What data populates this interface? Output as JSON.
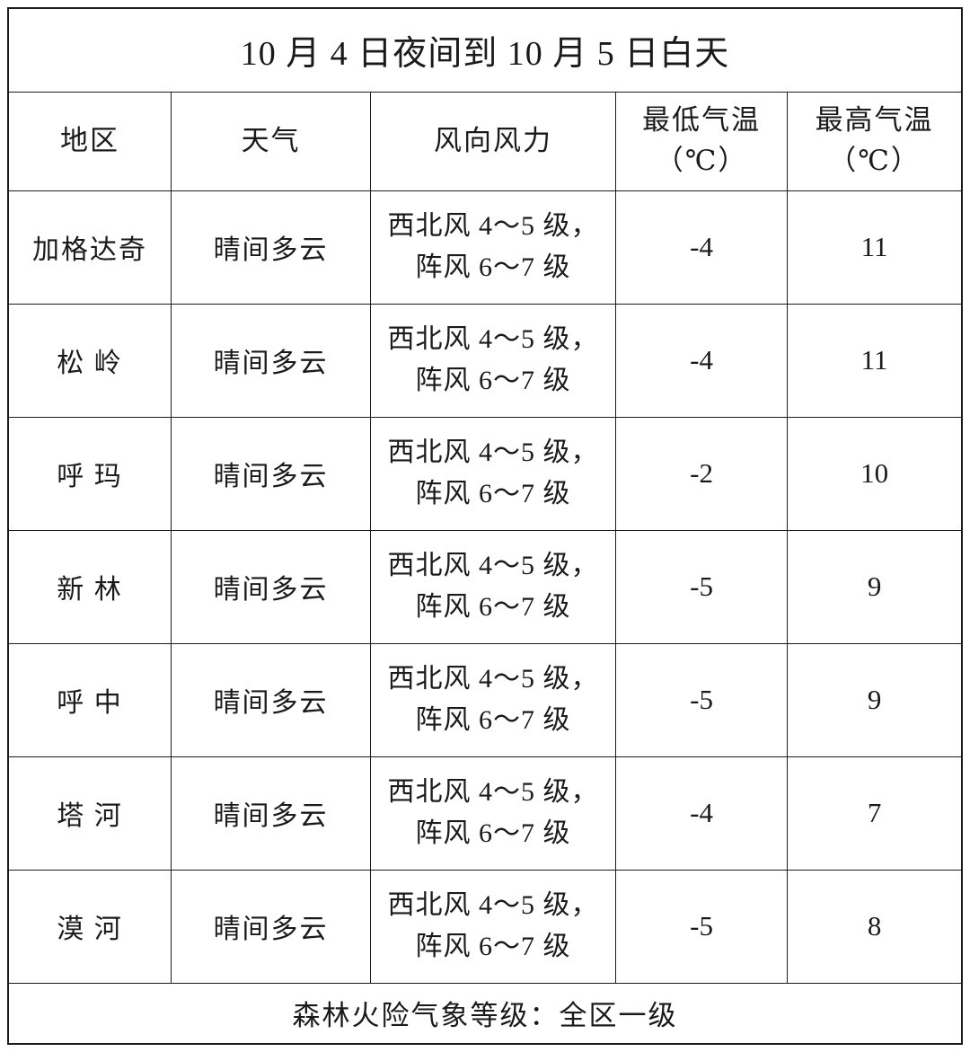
{
  "table": {
    "title": "10 月 4 日夜间到 10 月 5 日白天",
    "columns": [
      "地区",
      "天气",
      "风向风力",
      "最低气温\n（℃）",
      "最高气温\n（℃）"
    ],
    "rows": [
      {
        "region": "加格达奇",
        "weather": "晴间多云",
        "wind": "西北风 4～5 级，\n阵风 6～7 级",
        "min": "-4",
        "max": "11"
      },
      {
        "region": "松 岭",
        "weather": "晴间多云",
        "wind": "西北风 4～5 级，\n阵风 6～7 级",
        "min": "-4",
        "max": "11"
      },
      {
        "region": "呼 玛",
        "weather": "晴间多云",
        "wind": "西北风 4～5 级，\n阵风 6～7 级",
        "min": "-2",
        "max": "10"
      },
      {
        "region": "新 林",
        "weather": "晴间多云",
        "wind": "西北风 4～5 级，\n阵风 6～7 级",
        "min": "-5",
        "max": "9"
      },
      {
        "region": "呼 中",
        "weather": "晴间多云",
        "wind": "西北风 4～5 级，\n阵风 6～7 级",
        "min": "-5",
        "max": "9"
      },
      {
        "region": "塔 河",
        "weather": "晴间多云",
        "wind": "西北风 4～5 级，\n阵风 6～7 级",
        "min": "-4",
        "max": "7"
      },
      {
        "region": "漠 河",
        "weather": "晴间多云",
        "wind": "西北风 4～5 级，\n阵风 6～7 级",
        "min": "-5",
        "max": "8"
      }
    ],
    "footer": "森林火险气象等级：全区一级",
    "colors": {
      "border": "#1c1c1c",
      "text": "#1a1a1a",
      "background": "#ffffff"
    }
  }
}
